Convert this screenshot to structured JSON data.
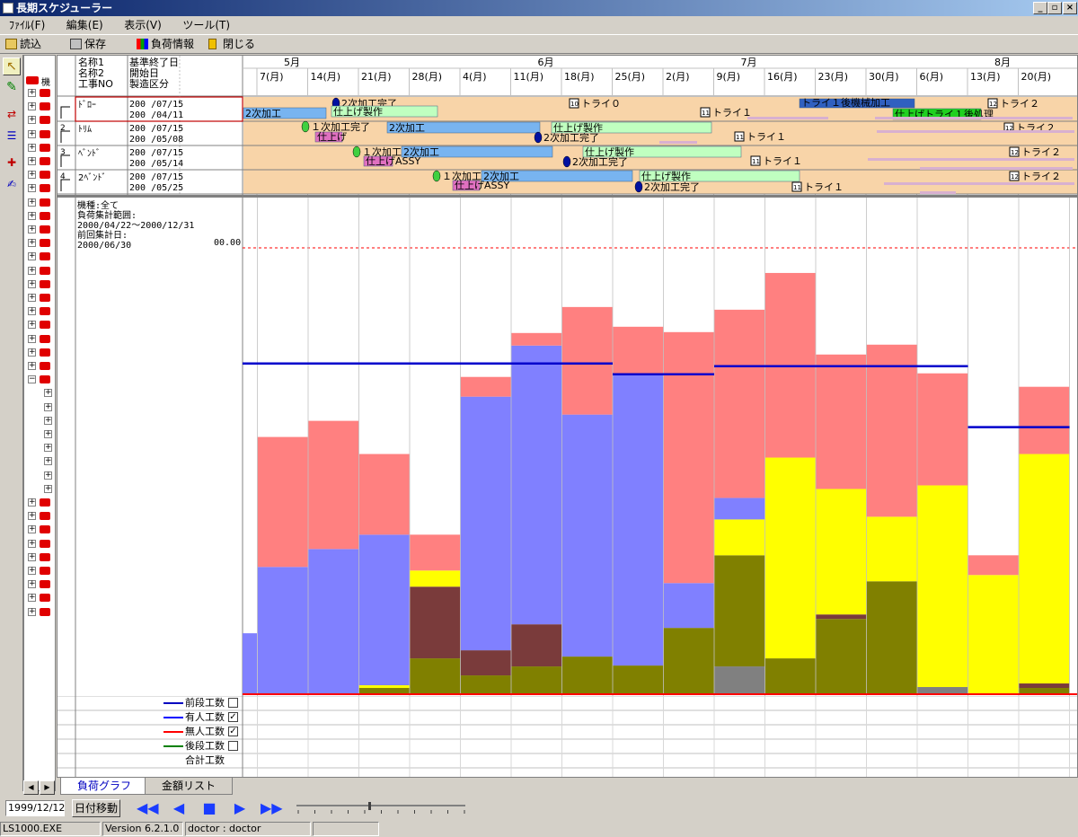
{
  "window": {
    "title": "長期スケジューラー"
  },
  "menu": [
    "ﾌｧｲﾙ(F)",
    "編集(E)",
    "表示(V)",
    "ツール(T)"
  ],
  "toolbar": {
    "load": "読込",
    "save": "保存",
    "load_info": "負荷情報",
    "close": "閉じる"
  },
  "tree": {
    "top_label": "機"
  },
  "grid_header": {
    "col1": [
      "名称1",
      "名称2",
      "工事NO"
    ],
    "col2": [
      "基準終了日",
      "開始日",
      "製造区分"
    ]
  },
  "months": [
    {
      "label": "5月",
      "week": 0
    },
    {
      "label": "6月",
      "week": 5
    },
    {
      "label": "7月",
      "week": 9
    },
    {
      "label": "8月",
      "week": 14
    }
  ],
  "weeks": [
    "7(月)",
    "14(月)",
    "21(月)",
    "28(月)",
    "4(月)",
    "11(月)",
    "18(月)",
    "25(月)",
    "2(月)",
    "9(月)",
    "16(月)",
    "23(月)",
    "30(月)",
    "6(月)",
    "13(月)",
    "20(月)"
  ],
  "rows": [
    {
      "name": "ﾄﾞﾛｰ",
      "date1": "200 /07/15",
      "date2": "200 /04/11",
      "flag": ""
    },
    {
      "name": "ﾄﾘﾑ",
      "date1": "200 /07/15",
      "date2": "200 /05/08",
      "flag": "2"
    },
    {
      "name": "ﾍﾞﾝﾄﾞ",
      "date1": "200 /07/15",
      "date2": "200 /05/14",
      "flag": "3"
    },
    {
      "name": "2ﾍﾞﾝﾄﾞ",
      "date1": "200 /07/15",
      "date2": "200 /05/25",
      "flag": "4"
    }
  ],
  "gantt_labels": {
    "r0": [
      "2次加工完了",
      "2次加工",
      "仕上げ製作",
      "トライ０",
      "トライ１",
      "トライ１後機械加工",
      "仕上げトライ１後処理",
      "トライ２"
    ],
    "r1": [
      "１次加工完了",
      "仕上げ",
      "2次加工",
      "2次加工完了",
      "仕上げ製作",
      "トライ１",
      "トライ２"
    ],
    "r2": [
      "１次加工完了",
      "2次加工",
      "仕上げASSY",
      "仕上げ製作",
      "2次加工完了",
      "トライ１",
      "トライ２"
    ],
    "r3": [
      "１次加工完了",
      "2次加工",
      "仕上げASSY",
      "仕上げ製作",
      "2次加工完了",
      "トライ１",
      "トライ２"
    ],
    "icons": [
      "10",
      "11",
      "12"
    ]
  },
  "info": {
    "model": "機種:全て",
    "range_label": "負荷集計範囲:",
    "range": "2000/04/22～2000/12/31",
    "last_label": "前回集計日:",
    "last": "2000/06/30",
    "axis_top": "00.00"
  },
  "legend": [
    {
      "label": "前段工数",
      "checked": "",
      "color": "#0000c0"
    },
    {
      "label": "有人工数",
      "checked": "✓",
      "color": "#0000ff"
    },
    {
      "label": "無人工数",
      "checked": "✓",
      "color": "#ff0000"
    },
    {
      "label": "後段工数",
      "checked": "",
      "color": "#008000"
    },
    {
      "label": "合計工数",
      "checked": "",
      "color": ""
    }
  ],
  "chart_data": {
    "type": "bar",
    "stacked": true,
    "categories": [
      "4/30",
      "5/7",
      "5/14",
      "5/21",
      "5/28",
      "6/4",
      "6/11",
      "6/18",
      "6/25",
      "7/2",
      "7/9",
      "7/16",
      "7/23",
      "7/30",
      "8/6",
      "8/13",
      "8/20"
    ],
    "series": [
      {
        "color": "#808080",
        "values": [
          0,
          0,
          0,
          0,
          0,
          0,
          0,
          0,
          0,
          0,
          31,
          0,
          0,
          0,
          8,
          0,
          0
        ]
      },
      {
        "color": "#808000",
        "values": [
          0,
          0,
          0,
          7,
          40,
          21,
          31,
          42,
          32,
          74,
          124,
          40,
          84,
          126,
          0,
          0,
          7
        ]
      },
      {
        "color": "#7a3b3b",
        "values": [
          0,
          0,
          0,
          0,
          80,
          28,
          47,
          0,
          0,
          0,
          0,
          0,
          5,
          0,
          0,
          0,
          5
        ]
      },
      {
        "color": "#ffff00",
        "values": [
          0,
          0,
          0,
          3,
          18,
          0,
          0,
          0,
          0,
          0,
          40,
          224,
          140,
          72,
          225,
          133,
          256
        ]
      },
      {
        "color": "#8080ff",
        "values": [
          68,
          142,
          162,
          168,
          0,
          283,
          311,
          270,
          325,
          50,
          24,
          0,
          0,
          0,
          0,
          0,
          0
        ]
      },
      {
        "color": "#ff8080",
        "values": [
          0,
          145,
          143,
          90,
          40,
          22,
          14,
          120,
          53,
          280,
          210,
          206,
          150,
          192,
          125,
          22,
          75
        ]
      }
    ],
    "lines": [
      {
        "color": "#0000cc",
        "segments": [
          [
            0,
            8,
            369
          ],
          [
            8,
            10,
            357
          ],
          [
            10,
            15,
            366
          ],
          [
            15,
            17,
            298
          ]
        ]
      }
    ],
    "ylim": [
      0,
      498
    ],
    "limit_line": 498
  },
  "tabs": [
    "負荷グラフ",
    "金額リスト"
  ],
  "navbar": {
    "date": "1999/12/12",
    "move_button": "日付移動"
  },
  "status": {
    "exe": "LS1000.EXE",
    "version": "Version 6.2.1.0",
    "user": "doctor : doctor"
  }
}
